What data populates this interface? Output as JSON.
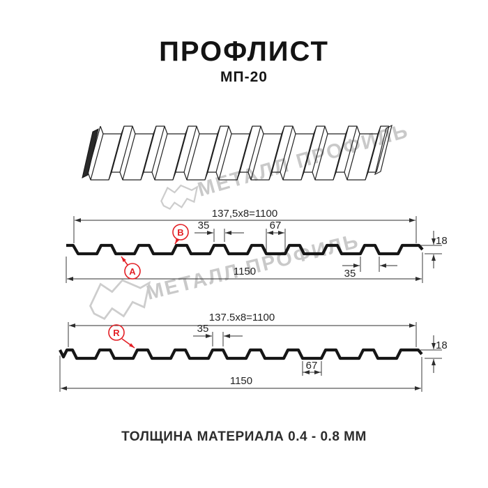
{
  "header": {
    "title": "ПРОФЛИСТ",
    "subtitle": "МП-20"
  },
  "footer": {
    "text": "ТОЛЩИНА МАТЕРИАЛА 0.4 - 0.8 ММ"
  },
  "watermark": {
    "brand": "МЕТАЛЛ ПРОФИЛЬ"
  },
  "colors": {
    "accent": "#e31e24",
    "ink": "#161616",
    "dim_line": "#3a3a3a",
    "watermark": "#c9c9c9"
  },
  "drawing_top": {
    "coverage_width": "137,5x8=1100",
    "overall_width": "1150",
    "rib_top_width": "35",
    "valley_width": "67",
    "profile_height": "18",
    "rib_bottom_width": "35",
    "point_a": "A",
    "point_b": "B"
  },
  "drawing_bottom": {
    "coverage_width": "137.5x8=1100",
    "overall_width": "1150",
    "rib_top_width": "35",
    "valley_width": "67",
    "profile_height": "18",
    "point_r": "R"
  }
}
